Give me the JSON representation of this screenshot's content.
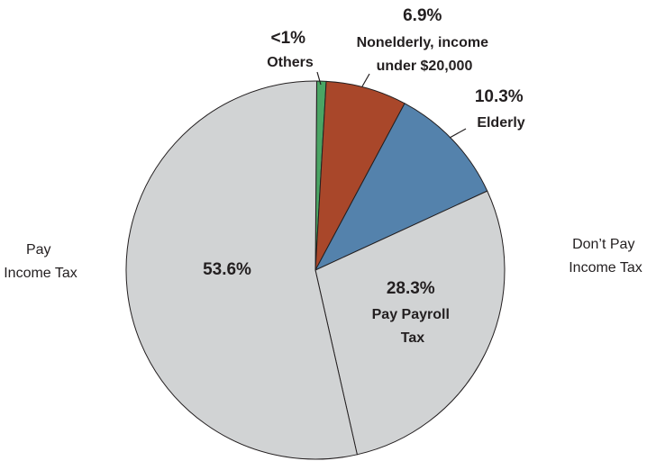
{
  "chart_data": {
    "type": "pie",
    "title": "",
    "slices": [
      {
        "label_lines": [
          "<1%",
          "Others"
        ],
        "value": 0.8,
        "color": "#4aa564"
      },
      {
        "label_lines": [
          "6.9%",
          "Nonelderly, income",
          "under $20,000"
        ],
        "value": 6.9,
        "color": "#a9472a"
      },
      {
        "label_lines": [
          "10.3%",
          "Elderly"
        ],
        "value": 10.3,
        "color": "#5482ac"
      },
      {
        "label_lines": [
          "28.3%",
          "Pay Payroll",
          "Tax"
        ],
        "value": 28.3,
        "color": "#d1d3d4"
      },
      {
        "label_lines": [
          "53.6%"
        ],
        "value": 53.6,
        "color": "#d1d3d4"
      }
    ],
    "group_labels": {
      "pay_income_tax": [
        "Pay",
        "Income Tax"
      ],
      "dont_pay_income_tax": [
        "Don’t Pay",
        "Income Tax"
      ]
    }
  }
}
